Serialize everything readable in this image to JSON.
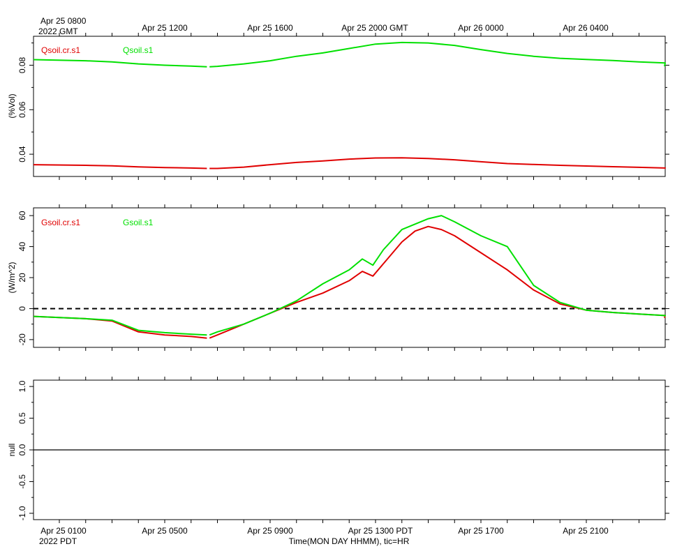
{
  "top_axis": {
    "first_label_line1": "Apr 25 0800",
    "first_label_line2": "2022 GMT",
    "labels": [
      "Apr 25 1200",
      "Apr 25 1600",
      "Apr 25 2000 GMT",
      "Apr 26 0000",
      "Apr 26 0400"
    ]
  },
  "bottom_axis": {
    "labels": [
      "Apr 25 0100",
      "Apr 25 0500",
      "Apr 25 0900",
      "Apr 25 1300 PDT",
      "Apr 25 1700",
      "Apr 25 2100"
    ],
    "year_label": "2022 PDT",
    "title": "Time(MON DAY HHMM), tic=HR"
  },
  "colors": {
    "red": "#e00000",
    "green": "#00e000",
    "axis": "#000000"
  },
  "chart_data": [
    {
      "type": "line",
      "name": "soil-moisture",
      "ylabel": "(%Vol)",
      "ylim": [
        0.03,
        0.093
      ],
      "yticks": [
        0.04,
        0.06,
        0.08
      ],
      "ytick_labels": [
        "0.04",
        "0.06",
        "0.08"
      ],
      "xlim_hours": [
        0,
        24
      ],
      "gap_hours": [
        5.6,
        5.7
      ],
      "series": [
        {
          "name": "Qsoil.cr.s1",
          "color": "red",
          "points": [
            [
              0,
              0.0353
            ],
            [
              1,
              0.035
            ],
            [
              2,
              0.0348
            ],
            [
              3,
              0.0343
            ],
            [
              4,
              0.034
            ],
            [
              5,
              0.0338
            ],
            [
              5.6,
              0.0336
            ],
            [
              5.7,
              0.0336
            ],
            [
              6,
              0.0336
            ],
            [
              7,
              0.0342
            ],
            [
              8,
              0.0353
            ],
            [
              9,
              0.0363
            ],
            [
              10,
              0.037
            ],
            [
              11,
              0.0378
            ],
            [
              12,
              0.0383
            ],
            [
              13,
              0.0384
            ],
            [
              14,
              0.0381
            ],
            [
              15,
              0.0375
            ],
            [
              16,
              0.0366
            ],
            [
              17,
              0.0358
            ],
            [
              18,
              0.0354
            ],
            [
              19,
              0.035
            ],
            [
              20,
              0.0347
            ],
            [
              21,
              0.0344
            ],
            [
              22,
              0.0341
            ],
            [
              23,
              0.0338
            ],
            [
              24,
              0.0335
            ]
          ]
        },
        {
          "name": "Qsoil.s1",
          "color": "green",
          "points": [
            [
              0,
              0.0825
            ],
            [
              1,
              0.082
            ],
            [
              2,
              0.0815
            ],
            [
              3,
              0.0806
            ],
            [
              4,
              0.08
            ],
            [
              5,
              0.0796
            ],
            [
              5.6,
              0.0793
            ],
            [
              5.7,
              0.0793
            ],
            [
              6,
              0.0795
            ],
            [
              7,
              0.0806
            ],
            [
              8,
              0.082
            ],
            [
              9,
              0.084
            ],
            [
              10,
              0.0855
            ],
            [
              11,
              0.0875
            ],
            [
              12,
              0.0895
            ],
            [
              13,
              0.0902
            ],
            [
              14,
              0.09
            ],
            [
              15,
              0.0889
            ],
            [
              16,
              0.087
            ],
            [
              17,
              0.0853
            ],
            [
              18,
              0.084
            ],
            [
              19,
              0.0831
            ],
            [
              20,
              0.0826
            ],
            [
              21,
              0.0821
            ],
            [
              22,
              0.0815
            ],
            [
              23,
              0.081
            ],
            [
              24,
              0.0795
            ]
          ]
        }
      ]
    },
    {
      "type": "line",
      "name": "soil-heat-flux",
      "ylabel": "(W/m^2)",
      "ylim": [
        -25,
        65
      ],
      "yticks": [
        -20,
        0,
        20,
        40,
        60
      ],
      "ytick_labels": [
        "-20",
        "0",
        "20",
        "40",
        "60"
      ],
      "xlim_hours": [
        0,
        24
      ],
      "gap_hours": [
        5.6,
        5.7
      ],
      "zero_line": true,
      "series": [
        {
          "name": "Gsoil.cr.s1",
          "color": "red",
          "points": [
            [
              0,
              -5
            ],
            [
              1,
              -6.5
            ],
            [
              2,
              -8
            ],
            [
              3,
              -15
            ],
            [
              4,
              -17
            ],
            [
              5,
              -18
            ],
            [
              5.6,
              -19
            ],
            [
              5.7,
              -19
            ],
            [
              6,
              -17
            ],
            [
              7,
              -10
            ],
            [
              8,
              -3
            ],
            [
              9,
              4
            ],
            [
              10,
              10
            ],
            [
              11,
              18
            ],
            [
              11.5,
              24
            ],
            [
              11.9,
              21
            ],
            [
              12.5,
              33
            ],
            [
              13,
              43
            ],
            [
              13.5,
              50
            ],
            [
              14,
              53
            ],
            [
              14.5,
              51
            ],
            [
              15,
              47
            ],
            [
              16,
              36
            ],
            [
              17,
              25
            ],
            [
              18,
              12
            ],
            [
              19,
              3
            ],
            [
              20,
              -1
            ],
            [
              21,
              -2.5
            ],
            [
              22,
              -3.5
            ],
            [
              23,
              -4.5
            ],
            [
              24,
              -6
            ]
          ]
        },
        {
          "name": "Gsoil.s1",
          "color": "green",
          "points": [
            [
              0,
              -5
            ],
            [
              1,
              -6.5
            ],
            [
              2,
              -7.5
            ],
            [
              3,
              -14
            ],
            [
              4,
              -15.5
            ],
            [
              5,
              -16.5
            ],
            [
              5.6,
              -17
            ],
            [
              5.7,
              -17
            ],
            [
              6,
              -15
            ],
            [
              7,
              -10
            ],
            [
              8,
              -3
            ],
            [
              9,
              5
            ],
            [
              10,
              16
            ],
            [
              11,
              25
            ],
            [
              11.5,
              32
            ],
            [
              11.9,
              28
            ],
            [
              12.3,
              38
            ],
            [
              13,
              51
            ],
            [
              14,
              58
            ],
            [
              14.5,
              60
            ],
            [
              15,
              56
            ],
            [
              16,
              47
            ],
            [
              17,
              40
            ],
            [
              18,
              15
            ],
            [
              19,
              4
            ],
            [
              20,
              -1
            ],
            [
              21,
              -2.5
            ],
            [
              22,
              -3.5
            ],
            [
              23,
              -4.5
            ],
            [
              24,
              -5
            ]
          ]
        }
      ]
    },
    {
      "type": "line",
      "name": "null-panel",
      "ylabel": "null",
      "ylim": [
        -1.1,
        1.1
      ],
      "yticks": [
        -1.0,
        -0.5,
        0.0,
        0.5,
        1.0
      ],
      "ytick_labels": [
        "-1.0",
        "-0.5",
        "0.0",
        "0.5",
        "1.0"
      ],
      "xlim_hours": [
        0,
        24
      ],
      "zero_line": true,
      "series": []
    }
  ]
}
